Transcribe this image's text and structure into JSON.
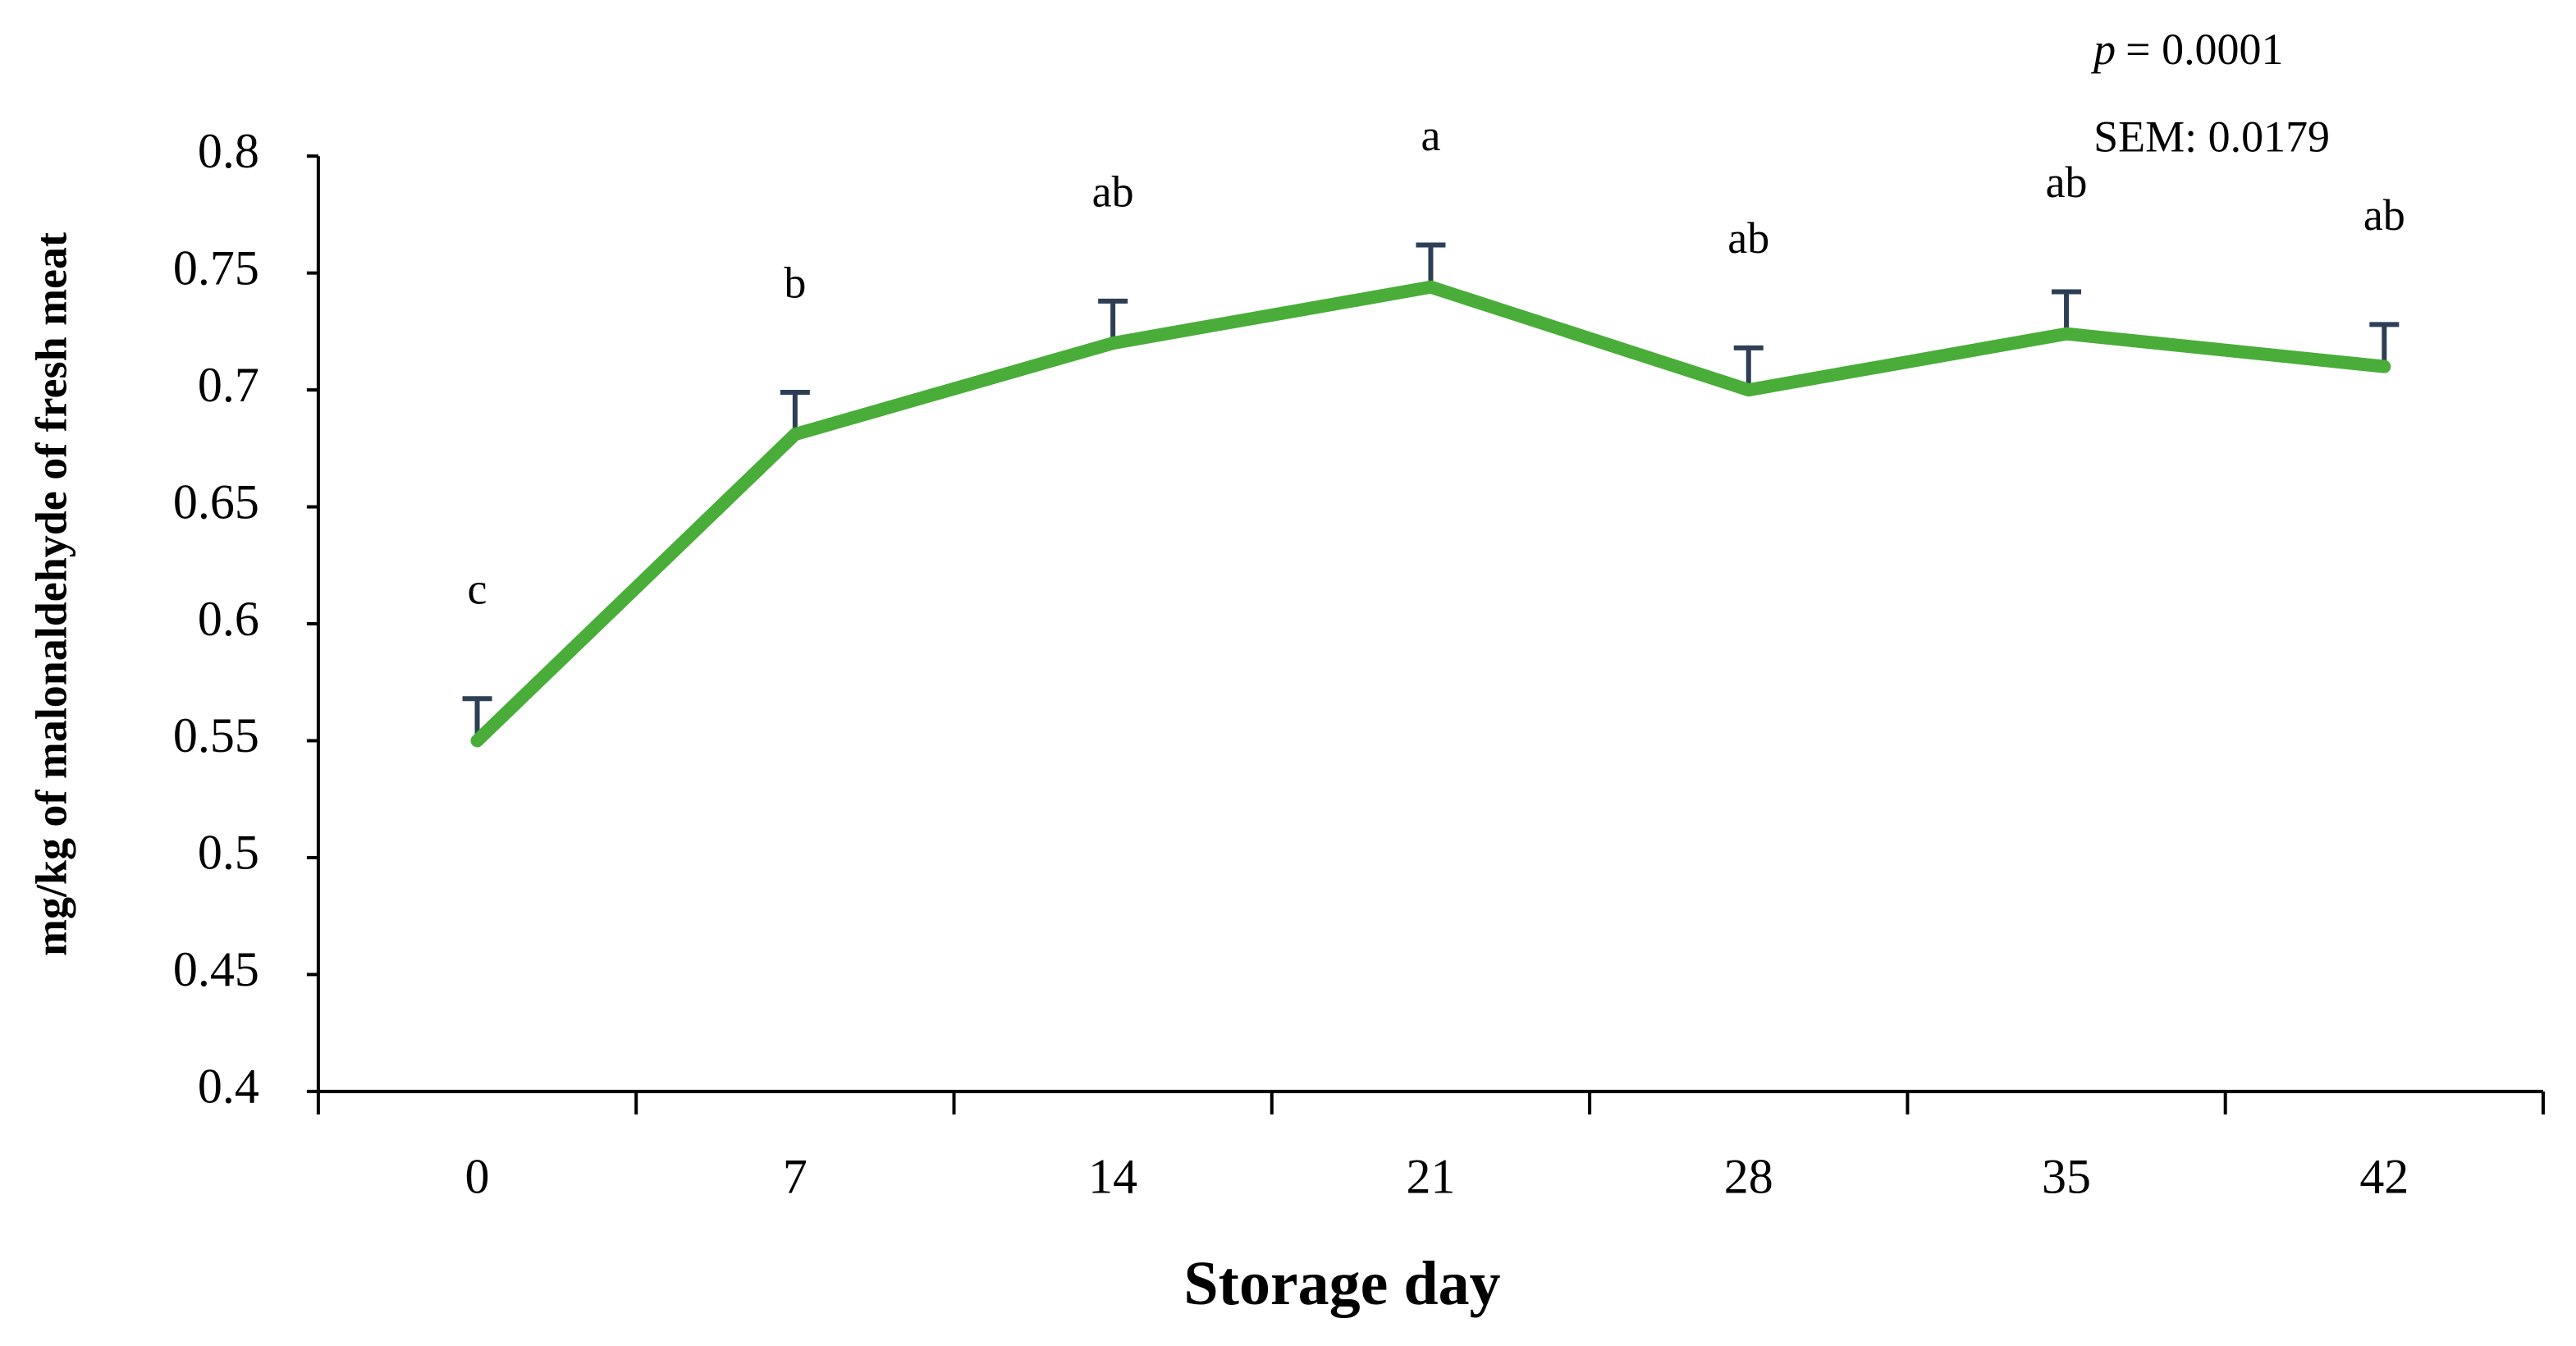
{
  "chart_data": {
    "type": "line",
    "x_label": "Storage day",
    "y_label": "mg/kg of malonaldehyde of fresh meat",
    "categories": [
      "0",
      "7",
      "14",
      "21",
      "28",
      "35",
      "42"
    ],
    "series": [
      {
        "color": "#4aad3a",
        "error_color": "#2e3f55",
        "values": [
          0.55,
          0.681,
          0.72,
          0.744,
          0.7,
          0.724,
          0.71
        ],
        "errors": [
          0.018,
          0.018,
          0.018,
          0.018,
          0.018,
          0.018,
          0.018
        ],
        "significance_labels": [
          "c",
          "b",
          "ab",
          "a",
          "ab",
          "ab",
          "ab"
        ]
      }
    ],
    "ylim": [
      0.4,
      0.8
    ],
    "yticks": [
      0.4,
      0.45,
      0.5,
      0.55,
      0.6,
      0.65,
      0.7,
      0.75,
      0.8
    ],
    "annotations": [
      {
        "italic": "p",
        "text": "= 0.0001"
      },
      {
        "text": "SEM: 0.0179"
      }
    ],
    "grid": false
  }
}
